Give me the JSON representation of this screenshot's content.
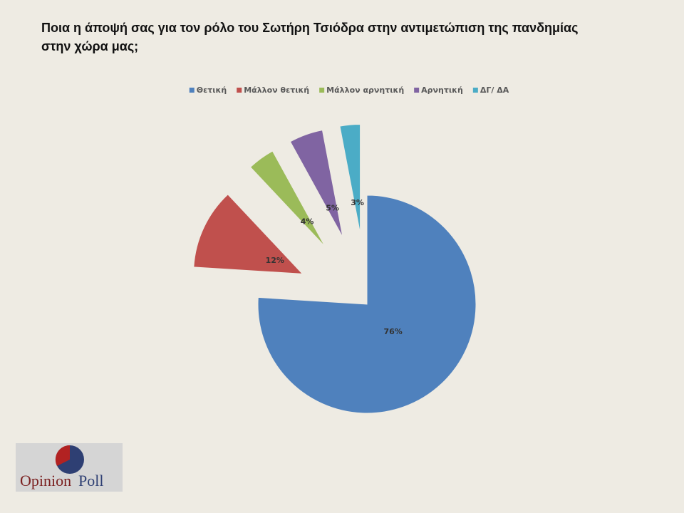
{
  "chart_data": {
    "type": "pie",
    "title": "Ποια η άποψή σας για τον ρόλο του  Σωτήρη Τσιόδρα στην αντιμετώπιση της πανδημίας στην χώρα μας;",
    "categories": [
      "Θετική",
      "Μάλλον θετική",
      "Μάλλον αρνητική",
      "Αρνητική",
      "ΔΓ/ ΔΑ"
    ],
    "values": [
      76,
      12,
      4,
      5,
      3
    ],
    "value_labels": [
      "76%",
      "12%",
      "4%",
      "5%",
      "3%"
    ],
    "colors": [
      "#4f81bd",
      "#c0504d",
      "#9bbb59",
      "#8064a2",
      "#4bacc6"
    ],
    "legend": "top"
  },
  "logo": [
    "Opinion",
    "Poll"
  ]
}
